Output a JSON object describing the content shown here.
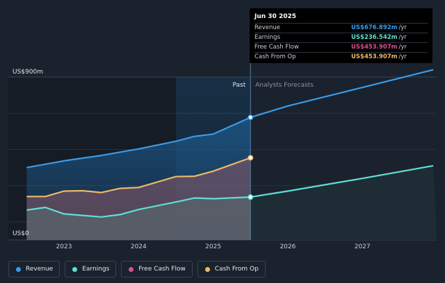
{
  "chart_data": {
    "type": "area",
    "y_top_label": "US$900m",
    "y_bottom_label": "US$0",
    "ylim": [
      0,
      900
    ],
    "x_ticks": [
      "2023",
      "2024",
      "2025",
      "2026",
      "2027"
    ],
    "past_label": "Past",
    "forecast_label": "Analysts Forecasts",
    "past_end": 2025.5,
    "series": [
      {
        "name": "Revenue",
        "color": "#3b9be8",
        "past": [
          [
            2022.5,
            400
          ],
          [
            2023.0,
            437
          ],
          [
            2023.5,
            467
          ],
          [
            2024.0,
            503
          ],
          [
            2024.5,
            545
          ],
          [
            2024.75,
            572
          ],
          [
            2025.0,
            585
          ],
          [
            2025.5,
            677
          ]
        ],
        "forecast": [
          [
            2025.5,
            677
          ],
          [
            2026.0,
            740
          ],
          [
            2027.0,
            842
          ],
          [
            2027.95,
            940
          ]
        ]
      },
      {
        "name": "Earnings",
        "color": "#5ee0d6",
        "past": [
          [
            2022.5,
            165
          ],
          [
            2022.75,
            180
          ],
          [
            2023.0,
            144
          ],
          [
            2023.5,
            127
          ],
          [
            2023.75,
            140
          ],
          [
            2024.0,
            168
          ],
          [
            2024.5,
            210
          ],
          [
            2024.75,
            232
          ],
          [
            2025.0,
            228
          ],
          [
            2025.5,
            237
          ]
        ],
        "forecast": [
          [
            2025.5,
            237
          ],
          [
            2026.0,
            270
          ],
          [
            2027.0,
            340
          ],
          [
            2027.95,
            410
          ]
        ]
      },
      {
        "name": "Free Cash Flow",
        "color": "#d8528f",
        "past": [
          [
            2022.5,
            240
          ],
          [
            2022.75,
            240
          ],
          [
            2023.0,
            270
          ],
          [
            2023.25,
            272
          ],
          [
            2023.5,
            262
          ],
          [
            2023.75,
            285
          ],
          [
            2024.0,
            290
          ],
          [
            2024.5,
            350
          ],
          [
            2024.75,
            352
          ],
          [
            2025.0,
            380
          ],
          [
            2025.5,
            454
          ]
        ],
        "forecast": []
      },
      {
        "name": "Cash From Op",
        "color": "#eeb86b",
        "past": [
          [
            2022.5,
            240
          ],
          [
            2022.75,
            240
          ],
          [
            2023.0,
            270
          ],
          [
            2023.25,
            272
          ],
          [
            2023.5,
            262
          ],
          [
            2023.75,
            285
          ],
          [
            2024.0,
            290
          ],
          [
            2024.5,
            350
          ],
          [
            2024.75,
            352
          ],
          [
            2025.0,
            380
          ],
          [
            2025.5,
            454
          ]
        ],
        "forecast": []
      }
    ]
  },
  "tooltip": {
    "date": "Jun 30 2025",
    "rows": [
      {
        "label": "Revenue",
        "value": "US$676.892m",
        "unit": "/yr",
        "color": "#3b9be8"
      },
      {
        "label": "Earnings",
        "value": "US$236.542m",
        "unit": "/yr",
        "color": "#5ee0d6"
      },
      {
        "label": "Free Cash Flow",
        "value": "US$453.907m",
        "unit": "/yr",
        "color": "#d8528f"
      },
      {
        "label": "Cash From Op",
        "value": "US$453.907m",
        "unit": "/yr",
        "color": "#eeb86b"
      }
    ]
  },
  "legend": [
    {
      "label": "Revenue",
      "color": "#3b9be8"
    },
    {
      "label": "Earnings",
      "color": "#5ee0d6"
    },
    {
      "label": "Free Cash Flow",
      "color": "#d8528f"
    },
    {
      "label": "Cash From Op",
      "color": "#eeb86b"
    }
  ]
}
